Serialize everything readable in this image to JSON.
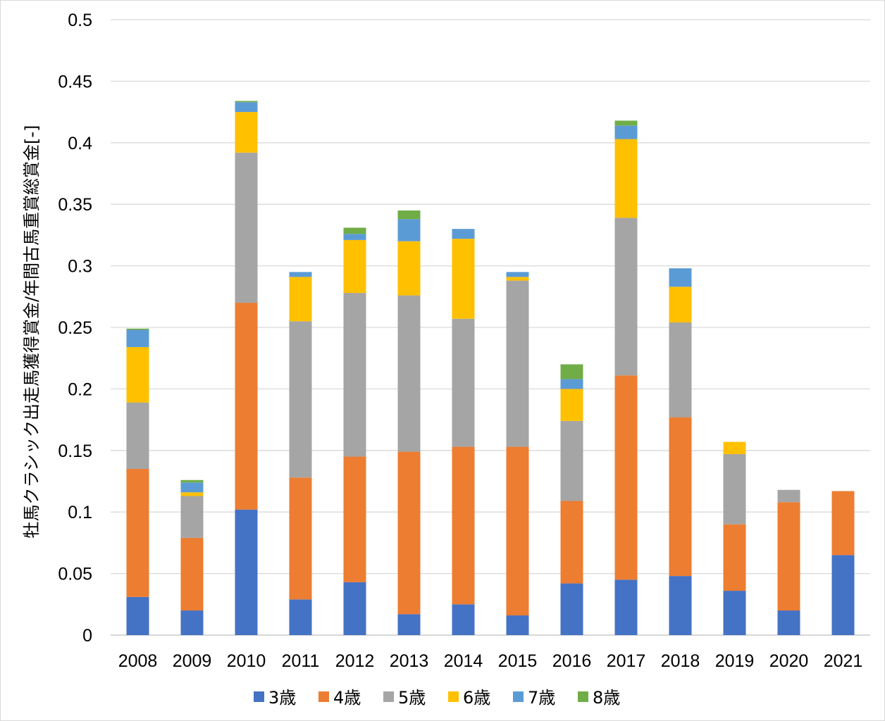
{
  "chart_data": {
    "type": "bar",
    "stacked": true,
    "title": "",
    "xlabel": "",
    "ylabel": "牡馬クラシック出走馬獲得賞金/年間古馬重賞総賞金[-]",
    "ylim": [
      0,
      0.5
    ],
    "ytick_step": 0.05,
    "grid": true,
    "legend_position": "bottom",
    "categories": [
      "2008",
      "2009",
      "2010",
      "2011",
      "2012",
      "2013",
      "2014",
      "2015",
      "2016",
      "2017",
      "2018",
      "2019",
      "2020",
      "2021"
    ],
    "series": [
      {
        "name": "3歳",
        "color": "#4472C4",
        "values": [
          0.031,
          0.02,
          0.102,
          0.029,
          0.043,
          0.017,
          0.025,
          0.016,
          0.042,
          0.045,
          0.048,
          0.036,
          0.02,
          0.065
        ]
      },
      {
        "name": "4歳",
        "color": "#ED7D31",
        "values": [
          0.104,
          0.059,
          0.168,
          0.099,
          0.102,
          0.132,
          0.128,
          0.137,
          0.067,
          0.166,
          0.129,
          0.054,
          0.088,
          0.052
        ]
      },
      {
        "name": "5歳",
        "color": "#A5A5A5",
        "values": [
          0.054,
          0.034,
          0.122,
          0.127,
          0.133,
          0.127,
          0.104,
          0.135,
          0.065,
          0.128,
          0.077,
          0.057,
          0.01,
          0.0
        ]
      },
      {
        "name": "6歳",
        "color": "#FFC000",
        "values": [
          0.045,
          0.003,
          0.033,
          0.036,
          0.043,
          0.044,
          0.065,
          0.003,
          0.026,
          0.064,
          0.029,
          0.01,
          0.0,
          0.0
        ]
      },
      {
        "name": "7歳",
        "color": "#5B9BD5",
        "values": [
          0.014,
          0.008,
          0.008,
          0.004,
          0.005,
          0.018,
          0.008,
          0.004,
          0.008,
          0.011,
          0.015,
          0.0,
          0.0,
          0.0
        ]
      },
      {
        "name": "8歳",
        "color": "#70AD47",
        "values": [
          0.001,
          0.002,
          0.001,
          0.0,
          0.005,
          0.007,
          0.0,
          0.0,
          0.012,
          0.004,
          0.0,
          0.0,
          0.0,
          0.0
        ]
      }
    ]
  }
}
